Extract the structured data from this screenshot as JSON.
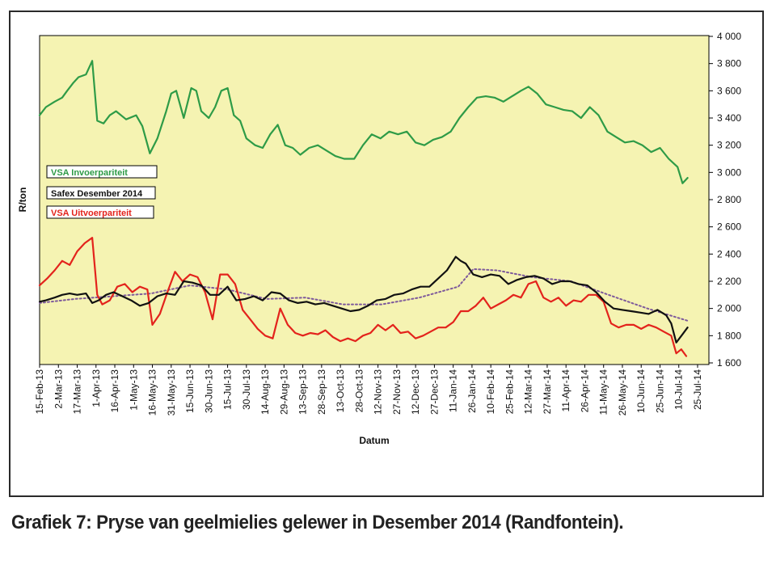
{
  "caption": "Grafiek 7: Pryse van geelmielies gelewer in Desember 2014 (Randfontein).",
  "chart_data": {
    "type": "line",
    "xlabel": "Datum",
    "ylabel": "R/ton",
    "ylim": [
      1600,
      4000
    ],
    "yticks": [
      1600,
      1800,
      2000,
      2200,
      2400,
      2600,
      2800,
      3000,
      3200,
      3400,
      3600,
      3800,
      4000
    ],
    "ytick_labels": [
      "1 600",
      "1 800",
      "2 000",
      "2 200",
      "2 400",
      "2 600",
      "2 800",
      "3 000",
      "3 200",
      "3 400",
      "3 600",
      "3 800",
      "4 000"
    ],
    "x_tick_labels": [
      "15-Feb-13",
      "2-Mar-13",
      "17-Mar-13",
      "1-Apr-13",
      "16-Apr-13",
      "1-May-13",
      "16-May-13",
      "31-May-13",
      "15-Jun-13",
      "30-Jun-13",
      "15-Jul-13",
      "30-Jul-13",
      "14-Aug-13",
      "29-Aug-13",
      "13-Sep-13",
      "28-Sep-13",
      "13-Oct-13",
      "28-Oct-13",
      "12-Nov-13",
      "27-Nov-13",
      "12-Dec-13",
      "27-Dec-13",
      "11-Jan-14",
      "26-Jan-14",
      "10-Feb-14",
      "25-Feb-14",
      "12-Mar-14",
      "27-Mar-14",
      "11-Apr-14",
      "26-Apr-14",
      "11-May-14",
      "26-May-14",
      "10-Jun-14",
      "25-Jun-14",
      "10-Jul-14",
      "25-Jul-14"
    ],
    "x_start": "2013-02-15",
    "x_end": "2014-07-25",
    "grid": false,
    "legend_position": "left-middle",
    "series": [
      {
        "name": "VSA Invoerpariteit",
        "color": "#2e9b47",
        "x": [
          "2013-02-15",
          "2013-02-20",
          "2013-02-27",
          "2013-03-05",
          "2013-03-09",
          "2013-03-14",
          "2013-03-18",
          "2013-03-24",
          "2013-03-29",
          "2013-04-02",
          "2013-04-07",
          "2013-04-12",
          "2013-04-17",
          "2013-04-25",
          "2013-05-03",
          "2013-05-08",
          "2013-05-14",
          "2013-05-20",
          "2013-05-27",
          "2013-05-31",
          "2013-06-04",
          "2013-06-10",
          "2013-06-16",
          "2013-06-20",
          "2013-06-24",
          "2013-06-30",
          "2013-07-05",
          "2013-07-10",
          "2013-07-15",
          "2013-07-20",
          "2013-07-25",
          "2013-07-30",
          "2013-08-06",
          "2013-08-12",
          "2013-08-18",
          "2013-08-24",
          "2013-08-30",
          "2013-09-05",
          "2013-09-11",
          "2013-09-18",
          "2013-09-25",
          "2013-10-02",
          "2013-10-09",
          "2013-10-16",
          "2013-10-24",
          "2013-10-31",
          "2013-11-07",
          "2013-11-14",
          "2013-11-21",
          "2013-11-28",
          "2013-12-05",
          "2013-12-12",
          "2013-12-19",
          "2013-12-26",
          "2014-01-02",
          "2014-01-09",
          "2014-01-16",
          "2014-01-23",
          "2014-01-30",
          "2014-02-06",
          "2014-02-13",
          "2014-02-20",
          "2014-02-27",
          "2014-03-06",
          "2014-03-12",
          "2014-03-19",
          "2014-03-26",
          "2014-04-02",
          "2014-04-09",
          "2014-04-16",
          "2014-04-23",
          "2014-04-30",
          "2014-05-07",
          "2014-05-14",
          "2014-05-21",
          "2014-05-28",
          "2014-06-04",
          "2014-06-11",
          "2014-06-18",
          "2014-06-25",
          "2014-07-02",
          "2014-07-09",
          "2014-07-13",
          "2014-07-17"
        ],
        "y": [
          3420,
          3480,
          3520,
          3550,
          3600,
          3660,
          3700,
          3720,
          3820,
          3380,
          3360,
          3420,
          3450,
          3390,
          3420,
          3340,
          3140,
          3250,
          3450,
          3580,
          3600,
          3400,
          3620,
          3600,
          3450,
          3400,
          3480,
          3600,
          3620,
          3420,
          3380,
          3250,
          3200,
          3180,
          3280,
          3350,
          3200,
          3180,
          3130,
          3180,
          3200,
          3160,
          3120,
          3100,
          3100,
          3200,
          3280,
          3250,
          3300,
          3280,
          3300,
          3220,
          3200,
          3240,
          3260,
          3300,
          3400,
          3480,
          3550,
          3560,
          3550,
          3520,
          3560,
          3600,
          3630,
          3580,
          3500,
          3480,
          3460,
          3450,
          3400,
          3480,
          3420,
          3300,
          3260,
          3220,
          3230,
          3200,
          3150,
          3180,
          3100,
          3040,
          2920,
          2960
        ]
      },
      {
        "name": "Safex Desember 2014",
        "color": "#111111",
        "x": [
          "2013-02-15",
          "2013-02-20",
          "2013-02-27",
          "2013-03-05",
          "2013-03-11",
          "2013-03-17",
          "2013-03-24",
          "2013-03-29",
          "2013-04-03",
          "2013-04-09",
          "2013-04-15",
          "2013-04-22",
          "2013-04-29",
          "2013-05-06",
          "2013-05-13",
          "2013-05-20",
          "2013-05-27",
          "2013-06-03",
          "2013-06-10",
          "2013-06-17",
          "2013-06-24",
          "2013-07-01",
          "2013-07-08",
          "2013-07-15",
          "2013-07-22",
          "2013-07-29",
          "2013-08-05",
          "2013-08-12",
          "2013-08-19",
          "2013-08-26",
          "2013-09-02",
          "2013-09-09",
          "2013-09-16",
          "2013-09-23",
          "2013-09-30",
          "2013-10-07",
          "2013-10-14",
          "2013-10-21",
          "2013-10-28",
          "2013-11-04",
          "2013-11-11",
          "2013-11-18",
          "2013-11-25",
          "2013-12-02",
          "2013-12-09",
          "2013-12-16",
          "2013-12-23",
          "2013-12-30",
          "2014-01-06",
          "2014-01-13",
          "2014-01-17",
          "2014-01-21",
          "2014-01-27",
          "2014-02-03",
          "2014-02-10",
          "2014-02-17",
          "2014-02-24",
          "2014-03-03",
          "2014-03-10",
          "2014-03-17",
          "2014-03-24",
          "2014-03-31",
          "2014-04-07",
          "2014-04-14",
          "2014-04-21",
          "2014-04-28",
          "2014-05-05",
          "2014-05-12",
          "2014-05-19",
          "2014-05-26",
          "2014-06-02",
          "2014-06-09",
          "2014-06-16",
          "2014-06-23",
          "2014-06-30",
          "2014-07-04",
          "2014-07-08",
          "2014-07-13",
          "2014-07-17"
        ],
        "y": [
          2050,
          2060,
          2080,
          2100,
          2110,
          2100,
          2110,
          2040,
          2060,
          2100,
          2120,
          2090,
          2060,
          2020,
          2040,
          2090,
          2110,
          2100,
          2200,
          2190,
          2170,
          2100,
          2100,
          2160,
          2060,
          2070,
          2090,
          2060,
          2120,
          2110,
          2060,
          2040,
          2050,
          2030,
          2040,
          2020,
          2000,
          1980,
          1990,
          2020,
          2060,
          2070,
          2100,
          2110,
          2140,
          2160,
          2160,
          2220,
          2280,
          2380,
          2350,
          2330,
          2250,
          2230,
          2250,
          2240,
          2180,
          2210,
          2230,
          2240,
          2220,
          2180,
          2200,
          2200,
          2180,
          2170,
          2120,
          2050,
          2000,
          1990,
          1980,
          1970,
          1960,
          1990,
          1950,
          1890,
          1750,
          1810,
          1860
        ]
      },
      {
        "name": "VSA Uitvoerpariteit",
        "color": "#e3231c",
        "x": [
          "2013-02-15",
          "2013-02-21",
          "2013-02-27",
          "2013-03-05",
          "2013-03-11",
          "2013-03-17",
          "2013-03-23",
          "2013-03-29",
          "2013-04-02",
          "2013-04-06",
          "2013-04-12",
          "2013-04-18",
          "2013-04-24",
          "2013-04-30",
          "2013-05-06",
          "2013-05-12",
          "2013-05-16",
          "2013-05-22",
          "2013-05-28",
          "2013-06-03",
          "2013-06-09",
          "2013-06-15",
          "2013-06-21",
          "2013-06-27",
          "2013-07-03",
          "2013-07-09",
          "2013-07-15",
          "2013-07-21",
          "2013-07-27",
          "2013-08-02",
          "2013-08-08",
          "2013-08-14",
          "2013-08-20",
          "2013-08-26",
          "2013-09-01",
          "2013-09-07",
          "2013-09-13",
          "2013-09-19",
          "2013-09-25",
          "2013-10-01",
          "2013-10-07",
          "2013-10-13",
          "2013-10-19",
          "2013-10-25",
          "2013-10-31",
          "2013-11-06",
          "2013-11-12",
          "2013-11-18",
          "2013-11-24",
          "2013-11-30",
          "2013-12-06",
          "2013-12-12",
          "2013-12-18",
          "2013-12-24",
          "2013-12-30",
          "2014-01-05",
          "2014-01-11",
          "2014-01-17",
          "2014-01-23",
          "2014-01-29",
          "2014-02-04",
          "2014-02-10",
          "2014-02-16",
          "2014-02-22",
          "2014-02-28",
          "2014-03-06",
          "2014-03-12",
          "2014-03-18",
          "2014-03-24",
          "2014-03-30",
          "2014-04-05",
          "2014-04-11",
          "2014-04-17",
          "2014-04-23",
          "2014-04-29",
          "2014-05-05",
          "2014-05-11",
          "2014-05-17",
          "2014-05-23",
          "2014-05-29",
          "2014-06-04",
          "2014-06-10",
          "2014-06-16",
          "2014-06-22",
          "2014-06-28",
          "2014-07-04",
          "2014-07-08",
          "2014-07-12",
          "2014-07-16"
        ],
        "y": [
          2170,
          2220,
          2280,
          2350,
          2320,
          2420,
          2480,
          2520,
          2100,
          2030,
          2060,
          2160,
          2180,
          2120,
          2160,
          2140,
          1880,
          1960,
          2120,
          2270,
          2200,
          2250,
          2230,
          2120,
          1920,
          2250,
          2250,
          2180,
          1990,
          1920,
          1850,
          1800,
          1780,
          2000,
          1880,
          1820,
          1800,
          1820,
          1810,
          1840,
          1790,
          1760,
          1780,
          1760,
          1800,
          1820,
          1880,
          1840,
          1880,
          1820,
          1830,
          1780,
          1800,
          1830,
          1860,
          1860,
          1900,
          1980,
          1980,
          2020,
          2080,
          2000,
          2030,
          2060,
          2100,
          2080,
          2180,
          2200,
          2080,
          2050,
          2080,
          2020,
          2060,
          2050,
          2100,
          2100,
          2050,
          1890,
          1860,
          1880,
          1880,
          1850,
          1880,
          1860,
          1830,
          1800,
          1670,
          1700,
          1650
        ]
      },
      {
        "name": "",
        "color": "#7e5a9b",
        "style": "dotted",
        "x": [
          "2013-02-15",
          "2013-03-15",
          "2013-04-15",
          "2013-05-15",
          "2013-06-15",
          "2013-07-15",
          "2013-08-15",
          "2013-09-15",
          "2013-10-15",
          "2013-11-15",
          "2013-12-15",
          "2014-01-15",
          "2014-01-27",
          "2014-02-15",
          "2014-03-15",
          "2014-04-15",
          "2014-05-15",
          "2014-06-15",
          "2014-07-17"
        ],
        "y": [
          2040,
          2070,
          2090,
          2110,
          2170,
          2140,
          2070,
          2080,
          2030,
          2030,
          2080,
          2160,
          2290,
          2280,
          2230,
          2200,
          2100,
          2000,
          1910
        ]
      }
    ]
  }
}
